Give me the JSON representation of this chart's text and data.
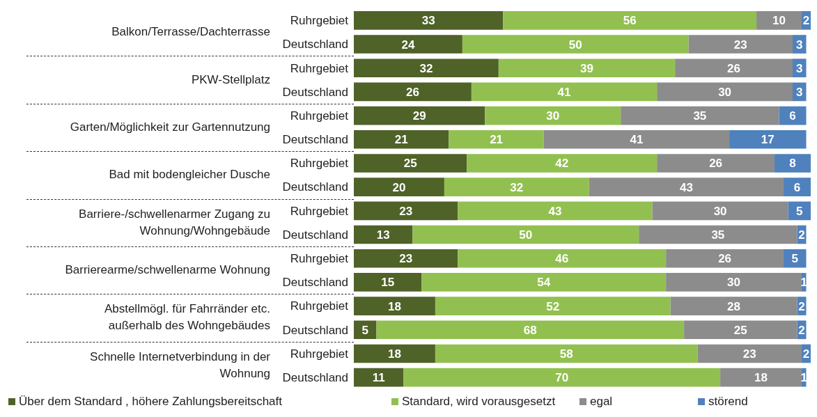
{
  "chart_data": {
    "type": "bar",
    "orientation": "horizontal",
    "stacked": true,
    "data_labels": true,
    "legend": "bottom",
    "categories": [
      "Ruhrgebiet",
      "Deutschland",
      "Ruhrgebiet",
      "Deutschland",
      "Ruhrgebiet",
      "Deutschland",
      "Ruhrgebiet",
      "Deutschland",
      "Ruhrgebiet",
      "Deutschland",
      "Ruhrgebiet",
      "Deutschland",
      "Ruhrgebiet",
      "Deutschland",
      "Ruhrgebiet",
      "Deutschland"
    ],
    "annotations": [
      "Balkon/Terrasse/Dachterrasse",
      "PKW-Stellplatz",
      "Garten/Möglichkeit zur Gartennutzung",
      "Bad mit bodengleicher Dusche",
      "Barriere-/schwellenarmer Zugang zu Wohnung/Wohngebäude",
      "Barrierearme/schwellenarme Wohnung",
      "Abstellmögl. für Fahrränder etc. außerhalb des Wohngebäudes",
      "Schnelle Internetverbindung in der Wohnung"
    ],
    "series": [
      {
        "name": "Über dem Standard , höhere Zahlungsbereitschaft",
        "color": "#4f6228",
        "values": [
          33,
          24,
          32,
          26,
          29,
          21,
          25,
          20,
          23,
          13,
          23,
          15,
          18,
          5,
          18,
          11
        ]
      },
      {
        "name": "Standard, wird vorausgesetzt",
        "color": "#92c050",
        "values": [
          56,
          50,
          39,
          41,
          30,
          21,
          42,
          32,
          43,
          50,
          46,
          54,
          52,
          68,
          58,
          70
        ]
      },
      {
        "name": "egal",
        "color": "#8c8c8c",
        "values": [
          10,
          23,
          26,
          30,
          35,
          41,
          26,
          43,
          30,
          35,
          26,
          30,
          28,
          25,
          23,
          18
        ]
      },
      {
        "name": "störend",
        "color": "#4f81bd",
        "values": [
          2,
          3,
          3,
          3,
          6,
          17,
          8,
          6,
          5,
          2,
          5,
          1,
          2,
          2,
          2,
          1
        ]
      }
    ]
  }
}
